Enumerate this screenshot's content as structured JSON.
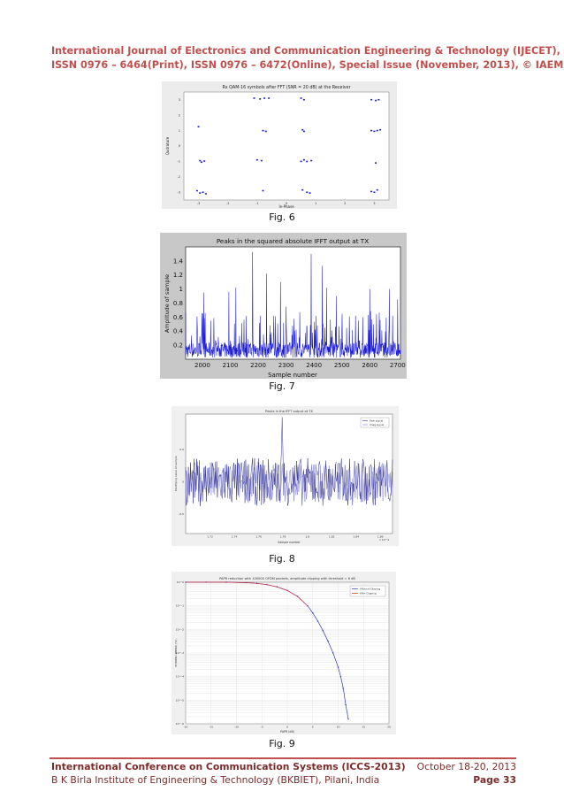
{
  "header": {
    "line1": "International Journal of Electronics and Communication Engineering & Technology (IJECET),",
    "line2": "ISSN 0976 – 6464(Print), ISSN 0976 – 6472(Online), Special Issue (November, 2013), © IAEME"
  },
  "figures": {
    "fig6": {
      "caption": "Fig. 6"
    },
    "fig7": {
      "caption": "Fig. 7"
    },
    "fig8": {
      "caption": "Fig. 8"
    },
    "fig9": {
      "caption": "Fig. 9"
    }
  },
  "chart_data": [
    {
      "type": "scatter",
      "title": "Rx QAM-16 symbols after FFT (SNR = 20 dB) at the Receiver",
      "xlabel": "In-Phase",
      "ylabel": "Qudrature",
      "xlim": [
        -3.5,
        3.5
      ],
      "ylim": [
        -3.5,
        3.5
      ],
      "xticks": [
        -3,
        -2,
        -1,
        0,
        1,
        2,
        3
      ],
      "yticks": [
        3,
        2,
        1,
        0,
        -1,
        -2,
        -3
      ],
      "series": [
        {
          "color": "#1d1dd6",
          "points": [
            [
              -2.95,
              -0.95
            ],
            [
              -2.9,
              -1.05
            ],
            [
              -2.8,
              -0.98
            ],
            [
              -3.05,
              -2.9
            ],
            [
              -2.95,
              -3.05
            ],
            [
              -2.85,
              -3.0
            ],
            [
              -2.75,
              -3.1
            ],
            [
              -3.0,
              1.25
            ],
            [
              -1.1,
              3.1
            ],
            [
              -0.9,
              3.05
            ],
            [
              -0.75,
              3.1
            ],
            [
              -0.6,
              3.1
            ],
            [
              -1.0,
              -0.9
            ],
            [
              -0.85,
              -0.95
            ],
            [
              -0.8,
              1.0
            ],
            [
              -0.7,
              0.95
            ],
            [
              -0.8,
              -2.9
            ],
            [
              0.5,
              3.1
            ],
            [
              0.6,
              3.0
            ],
            [
              0.6,
              -0.9
            ],
            [
              0.5,
              -1.0
            ],
            [
              0.7,
              -1.0
            ],
            [
              0.85,
              -0.95
            ],
            [
              0.55,
              1.05
            ],
            [
              0.6,
              0.95
            ],
            [
              0.55,
              -2.85
            ],
            [
              0.7,
              -3.0
            ],
            [
              0.8,
              -3.05
            ],
            [
              2.9,
              3.0
            ],
            [
              3.05,
              2.95
            ],
            [
              3.15,
              3.0
            ],
            [
              2.9,
              1.0
            ],
            [
              3.0,
              0.95
            ],
            [
              3.1,
              1.0
            ],
            [
              3.2,
              1.05
            ],
            [
              3.05,
              -1.1
            ],
            [
              2.9,
              -2.95
            ],
            [
              3.0,
              -3.0
            ],
            [
              3.1,
              -2.85
            ]
          ]
        }
      ]
    },
    {
      "type": "line",
      "title": "Peaks in the squared absolute IFFT output at TX",
      "xlabel": "Sample number",
      "ylabel": "Amplitude of sample",
      "xlim": [
        1940,
        2710
      ],
      "ylim": [
        0,
        1.6
      ],
      "xticks": [
        2000,
        2100,
        2200,
        2300,
        2400,
        2500,
        2600,
        2700
      ],
      "yticks": [
        0.2,
        0.4,
        0.6,
        0.8,
        1,
        1.2,
        1.4
      ],
      "series": [
        {
          "color": "#1a1ad0",
          "peaks": [
            [
              2180,
              1.53
            ],
            [
              2230,
              1.22
            ],
            [
              2390,
              1.5
            ],
            [
              2430,
              1.33
            ],
            [
              2670,
              1.0
            ],
            [
              2005,
              0.95
            ],
            [
              2095,
              0.96
            ],
            [
              2120,
              1.02
            ],
            [
              2280,
              1.1
            ],
            [
              2445,
              1.02
            ],
            [
              2480,
              0.9
            ],
            [
              2600,
              1.0
            ],
            [
              2700,
              0.85
            ],
            [
              2030,
              0.55
            ],
            [
              2300,
              0.75
            ]
          ]
        }
      ]
    },
    {
      "type": "line",
      "title": "Peaks in the IFFT output at TX",
      "xlabel": "Sample number",
      "ylabel": "Modifying value of sample",
      "xlim": [
        1.7,
        1.87
      ],
      "ylim": [
        -0.8,
        1.05
      ],
      "xtick_labels": [
        "1.72",
        "1.74",
        "1.76",
        "1.78",
        "1.8",
        "1.82",
        "1.84",
        "1.86"
      ],
      "x_multiplier": "x 10^4",
      "ytick_labels": [
        "0.5",
        "0",
        "-0.5"
      ],
      "legend": [
        "Real signal",
        "Imag signal"
      ],
      "legend_position": "top-right",
      "series": [
        {
          "name": "Real signal",
          "color": "#3a3aa8"
        },
        {
          "name": "Imag signal",
          "color": "#6a6ac8"
        }
      ]
    },
    {
      "type": "line",
      "title": "PAPR reduction with 100000 OFDM packets, amplitude clipping with threshold = 6 dB",
      "xlabel": "PAPR (dB)",
      "ylabel": "Pr(PAPR>PAPR0) (%)",
      "xlim": [
        -20,
        20
      ],
      "ylim_log10": [
        -6,
        0
      ],
      "xticks": [
        -20,
        -15,
        -10,
        -5,
        0,
        5,
        10,
        15,
        20
      ],
      "ytick_labels": [
        "10^0",
        "10^-1",
        "10^-2",
        "10^-3",
        "10^-4",
        "10^-5",
        "10^-6"
      ],
      "legend": [
        "Without Clipping",
        "With Clipping"
      ],
      "legend_position": "top-right",
      "series": [
        {
          "name": "Without Clipping",
          "color": "#3333cc",
          "x": [
            -20,
            -16,
            -12,
            -8,
            -6,
            -4,
            -2,
            0,
            2,
            4,
            5,
            6,
            7,
            8,
            9,
            10,
            10.5,
            11,
            11.5,
            12
          ],
          "log10y": [
            0,
            0,
            0,
            -0.02,
            -0.05,
            -0.1,
            -0.2,
            -0.35,
            -0.6,
            -1.0,
            -1.3,
            -1.65,
            -2.05,
            -2.5,
            -3.0,
            -3.6,
            -4.0,
            -4.5,
            -5.2,
            -5.8
          ]
        },
        {
          "name": "With Clipping",
          "color": "#cc3333",
          "x": [
            -20,
            -16,
            -12,
            -8,
            -6,
            -4,
            -2,
            0,
            2,
            4
          ],
          "log10y": [
            0,
            0,
            0,
            -0.02,
            -0.05,
            -0.1,
            -0.2,
            -0.35,
            -0.6,
            -1.0
          ]
        }
      ]
    }
  ],
  "footer": {
    "left1": "International Conference on Communication Systems (ICCS-2013)",
    "right1": "October 18-20, 2013",
    "left2": "B K Birla Institute of Engineering & Technology (BKBIET), Pilani, India",
    "right2": "Page 33"
  }
}
